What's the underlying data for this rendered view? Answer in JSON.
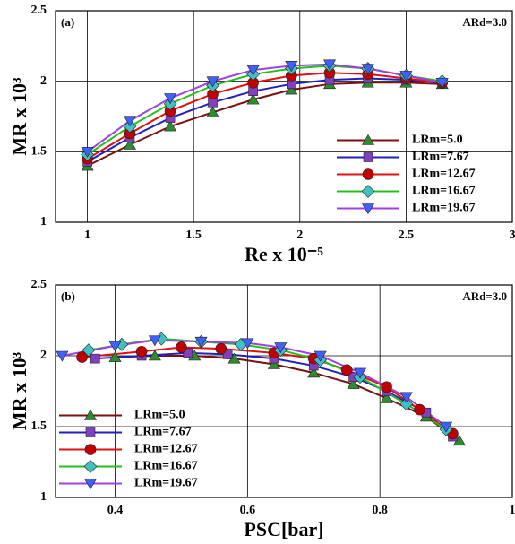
{
  "chart_data": [
    {
      "type": "line",
      "panel_label": "(a)",
      "annotation": "ARd=3.0",
      "x_label": "Re x 10⁻⁵",
      "y_label": "MR x 10³",
      "xlim": [
        0.85,
        3
      ],
      "ylim": [
        1,
        2.5
      ],
      "xticks": [
        1,
        1.5,
        2,
        2.5,
        3
      ],
      "yticks": [
        1,
        1.5,
        2,
        2.5
      ],
      "grid": true,
      "legend": "lower right",
      "x": [
        1.0,
        1.2,
        1.39,
        1.59,
        1.78,
        1.96,
        2.14,
        2.32,
        2.5,
        2.67
      ],
      "series": [
        {
          "name": "LRm=5.0",
          "color": "#7b1010",
          "marker": "triangle-up",
          "marker_color": "#2e8b2e",
          "values": [
            1.4,
            1.55,
            1.68,
            1.78,
            1.87,
            1.94,
            1.98,
            1.99,
            1.99,
            1.98
          ]
        },
        {
          "name": "LRm=7.67",
          "color": "#2020c0",
          "marker": "square",
          "marker_color": "#8040c0",
          "values": [
            1.43,
            1.6,
            1.74,
            1.85,
            1.93,
            1.98,
            2.01,
            2.02,
            2.01,
            1.99
          ]
        },
        {
          "name": "LRm=12.67",
          "color": "#e01010",
          "marker": "circle",
          "marker_color": "#c00000",
          "values": [
            1.45,
            1.63,
            1.79,
            1.91,
            1.99,
            2.04,
            2.06,
            2.05,
            2.02,
            1.99
          ]
        },
        {
          "name": "LRm=16.67",
          "color": "#20c020",
          "marker": "diamond",
          "marker_color": "#40c0c0",
          "values": [
            1.48,
            1.68,
            1.84,
            1.97,
            2.05,
            2.09,
            2.11,
            2.09,
            2.04,
            2.0
          ]
        },
        {
          "name": "LRm=19.67",
          "color": "#a040e0",
          "marker": "triangle-down",
          "marker_color": "#4060ff",
          "values": [
            1.5,
            1.72,
            1.88,
            2.0,
            2.08,
            2.11,
            2.12,
            2.09,
            2.04,
            1.99
          ]
        }
      ]
    },
    {
      "type": "line",
      "panel_label": "(b)",
      "annotation": "ARd=3.0",
      "x_label": "PSC[bar]",
      "y_label": "MR x 10³",
      "xlim": [
        0.31,
        1
      ],
      "ylim": [
        1,
        2.5
      ],
      "xticks": [
        0.4,
        0.6,
        0.8,
        1
      ],
      "yticks": [
        1,
        1.5,
        2,
        2.5
      ],
      "grid": true,
      "legend": "lower left",
      "series": [
        {
          "name": "LRm=5.0",
          "color": "#7b1010",
          "marker": "triangle-up",
          "marker_color": "#2e8b2e",
          "x": [
            0.92,
            0.87,
            0.81,
            0.76,
            0.7,
            0.64,
            0.58,
            0.52,
            0.46,
            0.4
          ],
          "values": [
            1.4,
            1.57,
            1.7,
            1.8,
            1.88,
            1.94,
            1.98,
            2.0,
            2.0,
            1.99
          ]
        },
        {
          "name": "LRm=7.67",
          "color": "#2020c0",
          "marker": "square",
          "marker_color": "#8040c0",
          "x": [
            0.91,
            0.87,
            0.81,
            0.76,
            0.7,
            0.64,
            0.57,
            0.51,
            0.44,
            0.37
          ],
          "values": [
            1.43,
            1.6,
            1.75,
            1.85,
            1.93,
            1.98,
            2.01,
            2.02,
            2.0,
            1.98
          ]
        },
        {
          "name": "LRm=12.67",
          "color": "#e01010",
          "marker": "circle",
          "marker_color": "#c00000",
          "x": [
            0.91,
            0.86,
            0.81,
            0.75,
            0.7,
            0.64,
            0.56,
            0.5,
            0.44,
            0.35
          ],
          "values": [
            1.45,
            1.62,
            1.78,
            1.9,
            1.98,
            2.02,
            2.05,
            2.06,
            2.03,
            1.99
          ]
        },
        {
          "name": "LRm=16.67",
          "color": "#20c020",
          "marker": "diamond",
          "marker_color": "#40c0c0",
          "x": [
            0.9,
            0.84,
            0.77,
            0.71,
            0.65,
            0.59,
            0.53,
            0.47,
            0.41,
            0.36
          ],
          "values": [
            1.48,
            1.66,
            1.85,
            1.97,
            2.04,
            2.08,
            2.1,
            2.12,
            2.08,
            2.04
          ]
        },
        {
          "name": "LRm=19.67",
          "color": "#a040e0",
          "marker": "triangle-down",
          "marker_color": "#4060ff",
          "x": [
            0.9,
            0.84,
            0.77,
            0.71,
            0.65,
            0.6,
            0.53,
            0.46,
            0.4,
            0.32
          ],
          "values": [
            1.5,
            1.71,
            1.88,
            2.0,
            2.06,
            2.09,
            2.1,
            2.11,
            2.07,
            2.0
          ]
        }
      ]
    }
  ]
}
